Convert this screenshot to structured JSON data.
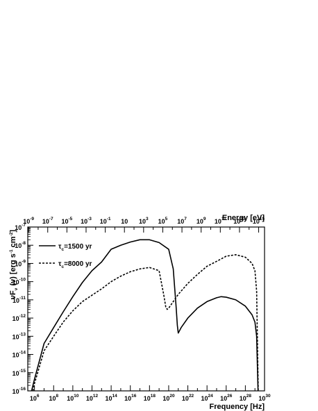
{
  "chart_data": {
    "type": "line",
    "title": "",
    "xlabel": "Frequency [Hz]",
    "ylabel_prefix": "νF",
    "ylabel_sub": "ν",
    "ylabel_mid": " (ν) [erg s",
    "ylabel_sup1": "-1",
    "ylabel_mid2": " cm",
    "ylabel_sup2": "-2",
    "ylabel_end": "]",
    "x2label": "Energy [eV]",
    "x_scale": "log",
    "y_scale": "log",
    "xlim": [
      200000.0,
      1e+30
    ],
    "ylim": [
      1e-16,
      1e-07
    ],
    "x2lim": [
      8.3e-10,
      4100000000000000.0
    ],
    "x_ticks": [
      {
        "base": "10",
        "exp": "6"
      },
      {
        "base": "10",
        "exp": "8"
      },
      {
        "base": "10",
        "exp": "10"
      },
      {
        "base": "10",
        "exp": "12"
      },
      {
        "base": "10",
        "exp": "14"
      },
      {
        "base": "10",
        "exp": "16"
      },
      {
        "base": "10",
        "exp": "18"
      },
      {
        "base": "10",
        "exp": "20"
      },
      {
        "base": "10",
        "exp": "22"
      },
      {
        "base": "10",
        "exp": "24"
      },
      {
        "base": "10",
        "exp": "26"
      },
      {
        "base": "10",
        "exp": "28"
      },
      {
        "base": "10",
        "exp": "30"
      }
    ],
    "y_ticks": [
      {
        "base": "10",
        "exp": "-16"
      },
      {
        "base": "10",
        "exp": "-15"
      },
      {
        "base": "10",
        "exp": "-14"
      },
      {
        "base": "10",
        "exp": "-13"
      },
      {
        "base": "10",
        "exp": "-12"
      },
      {
        "base": "10",
        "exp": "-11"
      },
      {
        "base": "10",
        "exp": "-10"
      },
      {
        "base": "10",
        "exp": "-9"
      },
      {
        "base": "10",
        "exp": "-8"
      },
      {
        "base": "10",
        "exp": "-7"
      }
    ],
    "x2_ticks": [
      {
        "base": "10",
        "exp": "-9",
        "value": 1e-09
      },
      {
        "base": "10",
        "exp": "-7",
        "value": 1e-07
      },
      {
        "base": "10",
        "exp": "-5",
        "value": 1e-05
      },
      {
        "base": "10",
        "exp": "-3",
        "value": 0.001
      },
      {
        "base": "10",
        "exp": "-1",
        "value": 0.1
      },
      {
        "base": "10",
        "exp": "",
        "value": 10
      },
      {
        "base": "10",
        "exp": "3",
        "value": 1000.0
      },
      {
        "base": "10",
        "exp": "5",
        "value": 100000.0
      },
      {
        "base": "10",
        "exp": "7",
        "value": 10000000.0
      },
      {
        "base": "10",
        "exp": "9",
        "value": 1000000000.0
      },
      {
        "base": "10",
        "exp": "11",
        "value": 100000000000.0
      },
      {
        "base": "10",
        "exp": "13",
        "value": 10000000000000.0
      },
      {
        "base": "10",
        "exp": "15",
        "value": 1000000000000000.0
      }
    ],
    "grid": false,
    "legend_position": "top-left",
    "series": [
      {
        "name_prefix": "τ",
        "name_sub": "c",
        "name_suffix": "=1500 yr",
        "style": "solid",
        "color": "#000000",
        "points": [
          [
            500000.0,
            1e-16
          ],
          [
            1000000.0,
            4.4e-16
          ],
          [
            10000000.0,
            4e-14
          ],
          [
            100000000.0,
            3e-13
          ],
          [
            1000000000.0,
            2.2e-12
          ],
          [
            10000000000.0,
            1.5e-11
          ],
          [
            100000000000.0,
            9e-11
          ],
          [
            1000000000000.0,
            4e-10
          ],
          [
            10000000000000.0,
            1.2e-09
          ],
          [
            100000000000000.0,
            6e-09
          ],
          [
            1000000000000000.0,
            1e-08
          ],
          [
            1e+16,
            1.5e-08
          ],
          [
            1e+17,
            2e-08
          ],
          [
            1e+18,
            2e-08
          ],
          [
            1e+19,
            1.4e-08
          ],
          [
            1e+20,
            6e-09
          ],
          [
            3e+20,
            5e-10
          ],
          [
            6e+20,
            4e-12
          ],
          [
            8e+20,
            4e-13
          ],
          [
            1e+21,
            1.5e-13
          ],
          [
            2e+21,
            3e-13
          ],
          [
            1e+22,
            1e-12
          ],
          [
            1e+23,
            3.5e-12
          ],
          [
            1e+24,
            8e-12
          ],
          [
            1e+25,
            1.3e-11
          ],
          [
            3e+25,
            1.5e-11
          ],
          [
            1e+26,
            1.4e-11
          ],
          [
            1e+27,
            1e-11
          ],
          [
            1e+28,
            4.5e-12
          ],
          [
            5e+28,
            1.5e-12
          ],
          [
            1e+29,
            6e-13
          ],
          [
            1.5e+29,
            1e-13
          ],
          [
            2.1e+29,
            1e-16
          ]
        ]
      },
      {
        "name_prefix": "τ",
        "name_sub": "c",
        "name_suffix": "=8000 yr",
        "style": "dashed",
        "color": "#000000",
        "points": [
          [
            700000.0,
            1e-16
          ],
          [
            1000000.0,
            2.5e-16
          ],
          [
            10000000.0,
            1.6e-14
          ],
          [
            100000000.0,
            1e-13
          ],
          [
            1000000000.0,
            6e-13
          ],
          [
            10000000000.0,
            2.5e-12
          ],
          [
            100000000000.0,
            8e-12
          ],
          [
            1000000000000.0,
            1.8e-11
          ],
          [
            10000000000000.0,
            4e-11
          ],
          [
            100000000000000.0,
            1e-10
          ],
          [
            1000000000000000.0,
            2e-10
          ],
          [
            1e+16,
            3.5e-10
          ],
          [
            1e+17,
            5e-10
          ],
          [
            1e+18,
            6e-10
          ],
          [
            1e+19,
            4e-10
          ],
          [
            3e+19,
            2e-11
          ],
          [
            5e+19,
            4e-12
          ],
          [
            7e+19,
            3e-12
          ],
          [
            1e+20,
            3.5e-12
          ],
          [
            1e+21,
            2e-11
          ],
          [
            1e+22,
            8e-11
          ],
          [
            1e+23,
            2.5e-10
          ],
          [
            1e+24,
            7e-10
          ],
          [
            1e+25,
            1.3e-09
          ],
          [
            1e+26,
            2.5e-09
          ],
          [
            1e+27,
            3e-09
          ],
          [
            1e+28,
            2.2e-09
          ],
          [
            5e+28,
            1e-09
          ],
          [
            1e+29,
            4e-10
          ],
          [
            1.5e+29,
            3e-11
          ],
          [
            2.2e+29,
            1e-16
          ]
        ]
      }
    ]
  }
}
